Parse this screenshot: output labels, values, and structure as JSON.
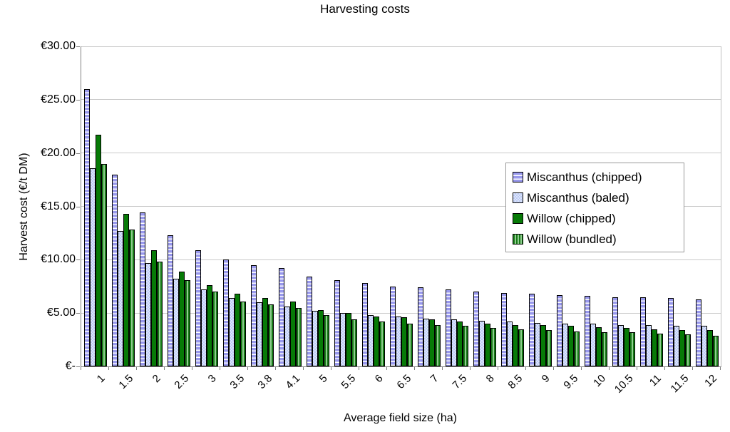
{
  "chart_title": "Harvesting costs",
  "axes": {
    "y_title": "Harvest cost (€/t DM)",
    "x_title": "Average field size (ha)",
    "y_tick_labels": [
      "€-",
      "€5.00",
      "€10.00",
      "€15.00",
      "€20.00",
      "€25.00",
      "€30.00"
    ]
  },
  "colors": {
    "miscanthus_chipped": "#9898ec",
    "miscanthus_baled": "#c9d5f7",
    "willow_chipped": "#077a07",
    "willow_bundled": "#177917",
    "gridline": "#c9c9c9",
    "axis": "#808080"
  },
  "chart_data": {
    "type": "bar",
    "title": "Harvesting costs",
    "xlabel": "Average field size (ha)",
    "ylabel": "Harvest cost (€/t DM)",
    "ylim": [
      0,
      30
    ],
    "y_tick_step": 5,
    "grid": true,
    "legend_position": "inside-top-right",
    "categories": [
      "1",
      "1.5",
      "2",
      "2.5",
      "3",
      "3.5",
      "3.8",
      "4.1",
      "5",
      "5.5",
      "6",
      "6.5",
      "7",
      "7.5",
      "8",
      "8.5",
      "9",
      "9.5",
      "10",
      "10.5",
      "11",
      "11.5",
      "12"
    ],
    "series": [
      {
        "name": "Miscanthus (chipped)",
        "pattern": "horizontal-stripes",
        "values": [
          26.0,
          18.0,
          14.4,
          12.3,
          10.9,
          10.0,
          9.5,
          9.2,
          8.4,
          8.1,
          7.8,
          7.5,
          7.4,
          7.2,
          7.0,
          6.9,
          6.8,
          6.7,
          6.6,
          6.5,
          6.5,
          6.4,
          6.3
        ]
      },
      {
        "name": "Miscanthus (baled)",
        "pattern": "checker",
        "values": [
          18.6,
          12.7,
          9.7,
          8.2,
          7.2,
          6.4,
          6.0,
          5.6,
          5.2,
          5.0,
          4.8,
          4.7,
          4.5,
          4.4,
          4.3,
          4.2,
          4.1,
          4.0,
          4.0,
          3.9,
          3.9,
          3.8,
          3.8
        ]
      },
      {
        "name": "Willow (chipped)",
        "pattern": "solid",
        "values": [
          21.7,
          14.3,
          10.9,
          8.9,
          7.6,
          6.8,
          6.4,
          6.1,
          5.3,
          5.0,
          4.7,
          4.6,
          4.4,
          4.2,
          4.0,
          3.9,
          3.9,
          3.8,
          3.7,
          3.6,
          3.5,
          3.4,
          3.4
        ]
      },
      {
        "name": "Willow (bundled)",
        "pattern": "vertical-stripes",
        "values": [
          19.0,
          12.8,
          9.8,
          8.1,
          7.0,
          6.1,
          5.8,
          5.5,
          4.8,
          4.4,
          4.2,
          4.0,
          3.9,
          3.8,
          3.6,
          3.5,
          3.4,
          3.3,
          3.2,
          3.2,
          3.1,
          3.0,
          2.9
        ]
      }
    ]
  }
}
